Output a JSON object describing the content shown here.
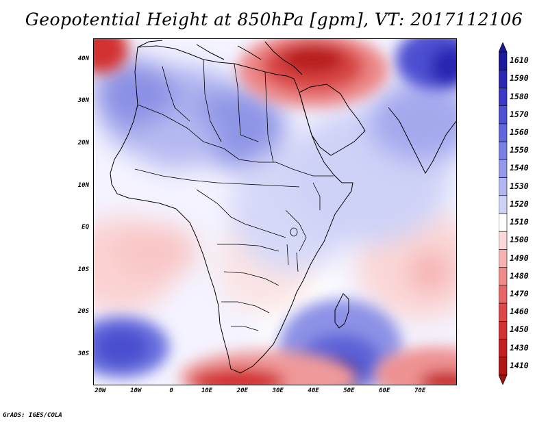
{
  "title": "Geopotential Height at 850hPa [gpm], VT: 2017112106",
  "credit": "GrADS: IGES/COLA",
  "map": {
    "projection": "lat-lon",
    "lon_range": [
      -22,
      80
    ],
    "lat_range": [
      -37,
      45
    ],
    "lat_ticks": [
      "40N",
      "30N",
      "20N",
      "10N",
      "EQ",
      "10S",
      "20S",
      "30S"
    ],
    "lon_ticks": [
      "20W",
      "10W",
      "0",
      "10E",
      "20E",
      "30E",
      "40E",
      "50E",
      "60E",
      "70E"
    ],
    "features": {
      "low_mediterranean": "red-core",
      "high_south_atlantic": "blue-core",
      "high_indian_ocean": "blue-core"
    }
  },
  "colorbar": {
    "labels": [
      "1610",
      "1590",
      "1580",
      "1570",
      "1560",
      "1550",
      "1540",
      "1530",
      "1520",
      "1510",
      "1500",
      "1490",
      "1480",
      "1470",
      "1460",
      "1450",
      "1430",
      "1410"
    ],
    "colors": [
      "#1e1a9c",
      "#2b28b4",
      "#3b3ac6",
      "#4d50d2",
      "#6066dc",
      "#7980e3",
      "#949aea",
      "#b1b5f0",
      "#cfd2f7",
      "#ffffff",
      "#fcd8d8",
      "#f7b2b2",
      "#ef8b8b",
      "#e66767",
      "#dc4848",
      "#d23131",
      "#c41f1f",
      "#b01515"
    ],
    "low_color": "#a01010",
    "high_color": "#1b1790"
  }
}
